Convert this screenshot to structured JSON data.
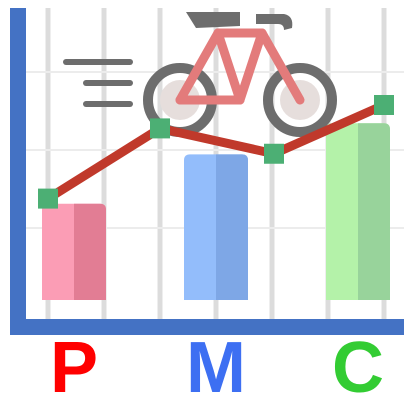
{
  "colors": {
    "background": "#ffffff",
    "axis": "#4472c4",
    "grid": "#dcdcdc",
    "trend_line": "#c0392b",
    "marker": "#4caf74",
    "speed_lines": "#6d6d6d",
    "bike_frame": "#e37b7b",
    "wheel": "#6d6d6d",
    "hub": "#e6dedc"
  },
  "labels": [
    {
      "text": "P",
      "color": "#ff0000"
    },
    {
      "text": "M",
      "color": "#3d6ff2"
    },
    {
      "text": "C",
      "color": "#33cc33"
    }
  ],
  "bars": [
    {
      "level": 0.37,
      "light": "#fb9db5",
      "dark": "#e27d94"
    },
    {
      "level": 0.56,
      "light": "#93bdfb",
      "dark": "#7ea7e6"
    },
    {
      "level": 0.68,
      "light": "#b4f2a9",
      "dark": "#98d39b"
    }
  ],
  "trend_points": [
    0.52,
    0.88,
    0.75,
    1.0
  ],
  "decoration": {
    "bicycle_icon": "bicycle-icon",
    "speed_icon": "speed-lines-icon"
  }
}
